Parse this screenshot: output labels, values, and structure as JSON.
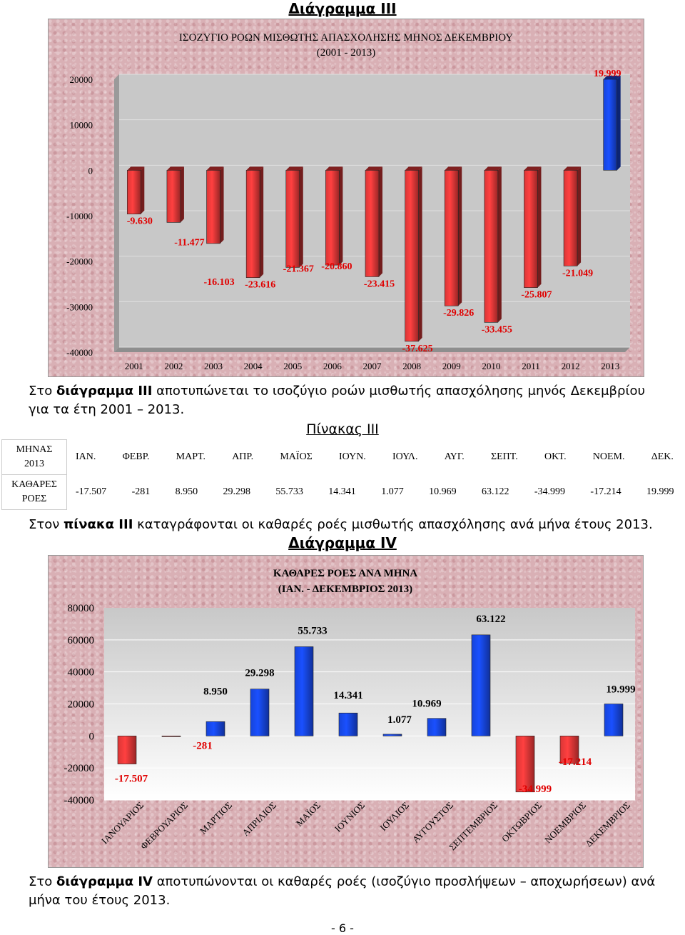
{
  "heading3": "Διάγραμμα ΙΙΙ",
  "chart3": {
    "type": "bar",
    "title": "ΙΣΟΖΥΓΙΟ ΡΟΩΝ ΜΙΣΘΩΤΗΣ ΑΠΑΣΧΟΛΗΣΗΣ ΜΗΝΟΣ ΔΕΚΕΜΒΡΙΟΥ",
    "subtitle": "(2001 - 2013)",
    "categories": [
      "2001",
      "2002",
      "2003",
      "2004",
      "2005",
      "2006",
      "2007",
      "2008",
      "2009",
      "2010",
      "2011",
      "2012",
      "2013"
    ],
    "values": [
      -9630,
      -11477,
      -16103,
      -23616,
      -21367,
      -20860,
      -23415,
      -37625,
      -29826,
      -33455,
      -25807,
      -21049,
      19999
    ],
    "data_labels": [
      "-9.630",
      "-11.477",
      "-16.103",
      "-23.616",
      "-21.367",
      "-20.860",
      "-23.415",
      "-37.625",
      "-29.826",
      "-33.455",
      "-25.807",
      "-21.049",
      "19.999"
    ],
    "yticks": [
      "20000",
      "10000",
      "0",
      "-10000",
      "-20000",
      "-30000",
      "-40000"
    ],
    "ylim": [
      -40000,
      20000
    ],
    "colors": {
      "negative": "#ff4040",
      "positive": "#1a50ff"
    }
  },
  "para3": {
    "prefix": "Στο ",
    "bold": "διάγραμμα ΙΙΙ",
    "rest": " αποτυπώνεται το ισοζύγιο ροών μισθωτής απασχόλησης μηνός Δεκεμβρίου για τα έτη 2001 – 2013."
  },
  "table_title": "Πίνακας ΙΙΙ",
  "table": {
    "row1_header": [
      "ΜΗΝΑΣ",
      "2013"
    ],
    "row2_header": [
      "ΚΑΘΑΡΕΣ",
      "ΡΟΕΣ"
    ],
    "months": [
      "ΙΑΝ.",
      "ΦΕΒΡ.",
      "ΜΑΡΤ.",
      "ΑΠΡ.",
      "ΜΑΪΟΣ",
      "ΙΟΥΝ.",
      "ΙΟΥΛ.",
      "ΑΥΓ.",
      "ΣΕΠΤ.",
      "ΟΚΤ.",
      "ΝΟΕΜ.",
      "ΔΕΚ."
    ],
    "values": [
      "-17.507",
      "-281",
      "8.950",
      "29.298",
      "55.733",
      "14.341",
      "1.077",
      "10.969",
      "63.122",
      "-34.999",
      "-17.214",
      "19.999"
    ]
  },
  "para_table": {
    "prefix": "Στον ",
    "bold": "πίνακα ΙΙΙ",
    "rest": " καταγράφονται οι καθαρές ροές μισθωτής απασχόλησης ανά μήνα έτους 2013."
  },
  "heading4": "Διάγραμμα ΙV",
  "chart4": {
    "type": "bar",
    "title": "ΚΑΘΑΡΕΣ ΡΟΕΣ ΑΝΑ ΜΗΝΑ",
    "subtitle": "(ΙΑΝ. - ΔΕΚΕΜΒΡΙΟΣ 2013)",
    "categories": [
      "ΙΑΝΟΥΑΡΙΟΣ",
      "ΦΕΒΡΟΥΑΡΙΟΣ",
      "ΜΑΡΤΙΟΣ",
      "ΑΠΡΙΛΙΟΣ",
      "ΜΑΪΟΣ",
      "ΙΟΥΝΙΟΣ",
      "ΙΟΥΛΙΟΣ",
      "ΑΥΓΟΥΣΤΟΣ",
      "ΣΕΠΤΕΜΒΡΙΟΣ",
      "ΟΚΤΩΒΡΙΟΣ",
      "ΝΟΕΜΒΡΙΟΣ",
      "ΔΕΚΕΜΒΡΙΟΣ"
    ],
    "values": [
      -17507,
      -281,
      8950,
      29298,
      55733,
      14341,
      1077,
      10969,
      63122,
      -34999,
      -17214,
      19999
    ],
    "data_labels": [
      "-17.507",
      "-281",
      "8.950",
      "29.298",
      "55.733",
      "14.341",
      "1.077",
      "10.969",
      "63.122",
      "-34.999",
      "-17.214",
      "19.999"
    ],
    "yticks": [
      "80000",
      "60000",
      "40000",
      "20000",
      "0",
      "-20000",
      "-40000"
    ],
    "ylim": [
      -40000,
      80000
    ],
    "colors": {
      "negative": "#ff4040",
      "positive": "#1a50ff"
    }
  },
  "para4": {
    "prefix": "Στο ",
    "bold": "διάγραμμα IV",
    "rest": " αποτυπώνονται οι καθαρές ροές (ισοζύγιο προσλήψεων – αποχωρήσεων) ανά μήνα του έτους 2013."
  },
  "page_number": "- 6 -"
}
